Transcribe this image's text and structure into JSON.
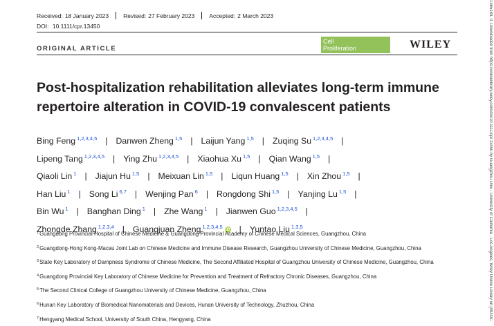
{
  "header": {
    "received_label": "Received:",
    "received_date": "18 January 2023",
    "revised_label": "Revised:",
    "revised_date": "27 February 2023",
    "accepted_label": "Accepted:",
    "accepted_date": "2 March 2023",
    "doi_label": "DOI:",
    "doi_value": "10.1111/cpr.13450"
  },
  "article_type": "ORIGINAL ARTICLE",
  "journal": {
    "line1": "Cell",
    "line2": "Proliferation",
    "color": "#93c15a"
  },
  "publisher": "WILEY",
  "title": "Post-hospitalization rehabilitation alleviates long-term immune repertoire alteration in COVID-19 convalescent patients",
  "authors": [
    {
      "name": "Bing Feng",
      "aff": "1,2,3,4,5"
    },
    {
      "name": "Danwen Zheng",
      "aff": "1,5"
    },
    {
      "name": "Laijun Yang",
      "aff": "1,5"
    },
    {
      "name": "Zuqing Su",
      "aff": "1,2,3,4,5"
    },
    {
      "name": "Lipeng Tang",
      "aff": "1,2,3,4,5"
    },
    {
      "name": "Ying Zhu",
      "aff": "1,2,3,4,5"
    },
    {
      "name": "Xiaohua Xu",
      "aff": "1,5"
    },
    {
      "name": "Qian Wang",
      "aff": "1,5"
    },
    {
      "name": "Qiaoli Lin",
      "aff": "1"
    },
    {
      "name": "Jiajun Hu",
      "aff": "1,5"
    },
    {
      "name": "Meixuan Lin",
      "aff": "1,5"
    },
    {
      "name": "Liqun Huang",
      "aff": "1,5"
    },
    {
      "name": "Xin Zhou",
      "aff": "1,5"
    },
    {
      "name": "Han Liu",
      "aff": "1"
    },
    {
      "name": "Song Li",
      "aff": "6,7"
    },
    {
      "name": "Wenjing Pan",
      "aff": "6"
    },
    {
      "name": "Rongdong Shi",
      "aff": "1,5"
    },
    {
      "name": "Yanjing Lu",
      "aff": "1,5"
    },
    {
      "name": "Bin Wu",
      "aff": "1"
    },
    {
      "name": "Banghan Ding",
      "aff": "1"
    },
    {
      "name": "Zhe Wang",
      "aff": "1"
    },
    {
      "name": "Jianwen Guo",
      "aff": "1,2,3,4,5"
    },
    {
      "name": "Zhongde Zhang",
      "aff": "1,2,3,4"
    },
    {
      "name": "Guangjuan Zheng",
      "aff": "1,2,3,4,5"
    },
    {
      "name": "Yuntao Liu",
      "aff": "1,3,5"
    }
  ],
  "orcid_label": "iD",
  "separator": "|",
  "affiliations": [
    {
      "num": "1",
      "text": "Guangdong Provincial Hospital of Chinese Medicine & Guangdong Provincial Academy of Chinese Medical Sciences, Guangzhou, China"
    },
    {
      "num": "2",
      "text": "Guangdong-Hong Kong-Macau Joint Lab on Chinese Medicine and Immune Disease Research, Guangzhou University of Chinese Medicine, Guangzhou, China"
    },
    {
      "num": "3",
      "text": "State Key Laboratory of Dampness Syndrome of Chinese Medicine, The Second Affiliated Hospital of Guangzhou University of Chinese Medicine, Guangzhou, China"
    },
    {
      "num": "4",
      "text": "Guangdong Provincial Key Laboratory of Chinese Medicine for Prevention and Treatment of Refractory Chronic Diseases, Guangzhou, China"
    },
    {
      "num": "5",
      "text": "The Second Clinical College of Guangzhou University of Chinese Medicine, Guangzhou, China"
    },
    {
      "num": "6",
      "text": "Hunan Key Laboratory of Biomedical Nanomaterials and Devices, Hunan University of Technology, Zhuzhou, China"
    },
    {
      "num": "7",
      "text": "Hengyang Medical School, University of South China, Hengyang, China"
    }
  ],
  "side_text": "1365184, 0, Downloaded from https://onlinelibrary.wiley.com/doi/10.1111/cpr.13450 by Guangzhou Univ - University of California - Los Angeles, Wiley Online Library on [09/03/2023]. See the Terms"
}
